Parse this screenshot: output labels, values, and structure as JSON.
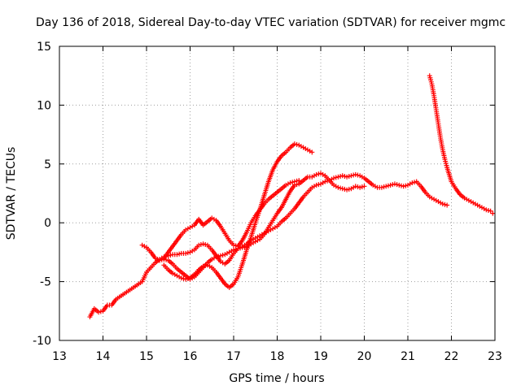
{
  "chart_data": {
    "type": "scatter",
    "title": "Day 136 of 2018, Sidereal Day-to-day VTEC variation (SDTVAR) for receiver mgmc",
    "xlabel": "GPS time / hours",
    "ylabel": "SDTVAR / TECUs",
    "xlim": [
      13,
      23
    ],
    "ylim": [
      -10,
      15
    ],
    "xticks": [
      "13",
      "14",
      "15",
      "16",
      "17",
      "18",
      "19",
      "20",
      "21",
      "22",
      "23"
    ],
    "yticks": [
      "-10",
      "-5",
      "0",
      "5",
      "10",
      "15"
    ],
    "grid": true,
    "marker": "plus",
    "color": "#ff0000",
    "series": [
      {
        "name": "track-1",
        "points": [
          [
            13.7,
            -8.0
          ],
          [
            13.8,
            -7.3
          ],
          [
            13.9,
            -7.6
          ],
          [
            14.0,
            -7.5
          ],
          [
            14.1,
            -7.0
          ],
          [
            14.2,
            -7.0
          ],
          [
            14.3,
            -6.5
          ],
          [
            14.5,
            -6.0
          ],
          [
            14.7,
            -5.5
          ],
          [
            14.9,
            -5.0
          ],
          [
            15.0,
            -4.2
          ],
          [
            15.1,
            -3.8
          ],
          [
            15.2,
            -3.4
          ],
          [
            15.3,
            -3.1
          ],
          [
            15.4,
            -2.9
          ],
          [
            15.5,
            -2.8
          ],
          [
            15.6,
            -2.7
          ],
          [
            15.7,
            -2.7
          ],
          [
            15.8,
            -2.6
          ],
          [
            15.9,
            -2.6
          ],
          [
            16.0,
            -2.5
          ],
          [
            16.1,
            -2.3
          ],
          [
            16.2,
            -1.9
          ],
          [
            16.3,
            -1.8
          ],
          [
            16.4,
            -1.9
          ],
          [
            16.5,
            -2.3
          ],
          [
            16.6,
            -2.8
          ],
          [
            16.7,
            -3.3
          ],
          [
            16.8,
            -3.5
          ],
          [
            16.9,
            -3.2
          ],
          [
            17.0,
            -2.6
          ],
          [
            17.1,
            -2.2
          ],
          [
            17.2,
            -2.0
          ],
          [
            17.3,
            -1.8
          ],
          [
            17.4,
            -1.5
          ],
          [
            17.5,
            -1.3
          ],
          [
            17.6,
            -1.1
          ],
          [
            17.7,
            -0.9
          ],
          [
            17.8,
            -0.7
          ],
          [
            17.9,
            -0.5
          ],
          [
            18.0,
            -0.3
          ],
          [
            18.1,
            0.1
          ],
          [
            18.2,
            0.4
          ],
          [
            18.3,
            0.8
          ],
          [
            18.4,
            1.2
          ],
          [
            18.5,
            1.7
          ],
          [
            18.6,
            2.2
          ],
          [
            18.7,
            2.6
          ],
          [
            18.8,
            3.0
          ],
          [
            18.9,
            3.2
          ],
          [
            19.0,
            3.3
          ],
          [
            19.1,
            3.5
          ],
          [
            19.2,
            3.6
          ],
          [
            19.3,
            3.8
          ],
          [
            19.4,
            3.9
          ],
          [
            19.5,
            4.0
          ],
          [
            19.6,
            3.9
          ],
          [
            19.7,
            4.0
          ],
          [
            19.8,
            4.1
          ],
          [
            19.9,
            4.0
          ],
          [
            20.0,
            3.8
          ],
          [
            20.1,
            3.5
          ],
          [
            20.2,
            3.2
          ],
          [
            20.3,
            3.0
          ],
          [
            20.4,
            3.0
          ],
          [
            20.5,
            3.1
          ],
          [
            20.6,
            3.2
          ],
          [
            20.7,
            3.3
          ],
          [
            20.8,
            3.2
          ],
          [
            20.9,
            3.1
          ],
          [
            21.0,
            3.2
          ],
          [
            21.1,
            3.4
          ],
          [
            21.2,
            3.5
          ],
          [
            21.3,
            3.1
          ],
          [
            21.4,
            2.6
          ],
          [
            21.5,
            2.2
          ],
          [
            21.6,
            2.0
          ],
          [
            21.7,
            1.8
          ],
          [
            21.8,
            1.6
          ],
          [
            21.9,
            1.5
          ]
        ]
      },
      {
        "name": "track-2",
        "points": [
          [
            14.9,
            -1.9
          ],
          [
            15.0,
            -2.1
          ],
          [
            15.1,
            -2.5
          ],
          [
            15.2,
            -3.0
          ],
          [
            15.3,
            -3.2
          ],
          [
            15.4,
            -3.1
          ],
          [
            15.5,
            -3.2
          ],
          [
            15.6,
            -3.5
          ],
          [
            15.7,
            -3.9
          ],
          [
            15.8,
            -4.2
          ],
          [
            15.9,
            -4.5
          ],
          [
            16.0,
            -4.8
          ],
          [
            16.1,
            -4.6
          ],
          [
            16.2,
            -4.2
          ],
          [
            16.3,
            -3.8
          ],
          [
            16.4,
            -3.4
          ],
          [
            16.5,
            -3.1
          ],
          [
            16.6,
            -2.9
          ],
          [
            16.7,
            -2.8
          ],
          [
            16.8,
            -2.7
          ],
          [
            16.9,
            -2.5
          ],
          [
            17.0,
            -2.3
          ],
          [
            17.1,
            -2.2
          ],
          [
            17.2,
            -2.1
          ],
          [
            17.3,
            -2.0
          ],
          [
            17.4,
            -1.8
          ],
          [
            17.5,
            -1.6
          ],
          [
            17.6,
            -1.4
          ],
          [
            17.7,
            -1.0
          ],
          [
            17.8,
            -0.4
          ],
          [
            17.9,
            0.2
          ],
          [
            18.0,
            0.8
          ],
          [
            18.1,
            1.3
          ],
          [
            18.2,
            2.0
          ],
          [
            18.3,
            2.7
          ],
          [
            18.4,
            3.2
          ],
          [
            18.5,
            3.3
          ],
          [
            18.6,
            3.6
          ],
          [
            18.7,
            3.9
          ],
          [
            18.8,
            3.9
          ],
          [
            18.9,
            4.1
          ],
          [
            19.0,
            4.2
          ],
          [
            19.1,
            4.0
          ],
          [
            19.2,
            3.6
          ],
          [
            19.3,
            3.2
          ],
          [
            19.4,
            3.0
          ],
          [
            19.5,
            2.9
          ],
          [
            19.6,
            2.8
          ],
          [
            19.7,
            2.9
          ],
          [
            19.8,
            3.1
          ],
          [
            19.9,
            3.0
          ],
          [
            20.0,
            3.1
          ]
        ]
      },
      {
        "name": "track-3",
        "points": [
          [
            15.4,
            -3.0
          ],
          [
            15.5,
            -2.5
          ],
          [
            15.6,
            -2.0
          ],
          [
            15.7,
            -1.5
          ],
          [
            15.8,
            -1.0
          ],
          [
            15.9,
            -0.6
          ],
          [
            16.0,
            -0.4
          ],
          [
            16.1,
            -0.2
          ],
          [
            16.2,
            0.3
          ],
          [
            16.3,
            -0.2
          ],
          [
            16.4,
            0.1
          ],
          [
            16.5,
            0.4
          ],
          [
            16.6,
            0.2
          ],
          [
            16.7,
            -0.3
          ],
          [
            16.8,
            -0.9
          ],
          [
            16.9,
            -1.5
          ],
          [
            17.0,
            -1.9
          ],
          [
            17.1,
            -2.0
          ],
          [
            17.2,
            -1.5
          ],
          [
            17.3,
            -0.8
          ],
          [
            17.4,
            0.0
          ],
          [
            17.5,
            0.6
          ],
          [
            17.6,
            1.1
          ],
          [
            17.7,
            1.6
          ],
          [
            17.8,
            2.0
          ],
          [
            17.9,
            2.3
          ],
          [
            18.0,
            2.6
          ],
          [
            18.1,
            2.9
          ],
          [
            18.2,
            3.2
          ],
          [
            18.3,
            3.4
          ],
          [
            18.4,
            3.5
          ],
          [
            18.5,
            3.6
          ]
        ]
      },
      {
        "name": "track-4",
        "points": [
          [
            15.4,
            -3.6
          ],
          [
            15.5,
            -4.0
          ],
          [
            15.6,
            -4.3
          ],
          [
            15.7,
            -4.5
          ],
          [
            15.8,
            -4.7
          ],
          [
            15.9,
            -4.8
          ],
          [
            16.0,
            -4.7
          ],
          [
            16.1,
            -4.4
          ],
          [
            16.2,
            -4.0
          ],
          [
            16.3,
            -3.7
          ],
          [
            16.4,
            -3.6
          ],
          [
            16.5,
            -3.8
          ],
          [
            16.6,
            -4.2
          ],
          [
            16.7,
            -4.7
          ],
          [
            16.8,
            -5.2
          ],
          [
            16.9,
            -5.5
          ],
          [
            17.0,
            -5.2
          ],
          [
            17.1,
            -4.6
          ],
          [
            17.2,
            -3.5
          ],
          [
            17.3,
            -2.3
          ],
          [
            17.4,
            -1.2
          ],
          [
            17.5,
            0.0
          ],
          [
            17.6,
            1.1
          ],
          [
            17.7,
            2.3
          ],
          [
            17.8,
            3.5
          ],
          [
            17.9,
            4.5
          ],
          [
            18.0,
            5.2
          ],
          [
            18.1,
            5.7
          ],
          [
            18.2,
            6.0
          ],
          [
            18.3,
            6.4
          ],
          [
            18.4,
            6.7
          ],
          [
            18.5,
            6.6
          ],
          [
            18.6,
            6.4
          ],
          [
            18.7,
            6.2
          ],
          [
            18.8,
            6.0
          ]
        ]
      },
      {
        "name": "track-5",
        "points": [
          [
            21.5,
            12.5
          ],
          [
            21.55,
            11.8
          ],
          [
            21.6,
            10.8
          ],
          [
            21.65,
            9.6
          ],
          [
            21.7,
            8.4
          ],
          [
            21.75,
            7.2
          ],
          [
            21.8,
            6.2
          ],
          [
            21.85,
            5.4
          ],
          [
            21.9,
            4.7
          ],
          [
            21.95,
            4.1
          ],
          [
            22.0,
            3.5
          ],
          [
            22.1,
            2.9
          ],
          [
            22.2,
            2.4
          ],
          [
            22.3,
            2.1
          ],
          [
            22.4,
            1.9
          ],
          [
            22.5,
            1.7
          ],
          [
            22.6,
            1.5
          ],
          [
            22.7,
            1.3
          ],
          [
            22.8,
            1.1
          ],
          [
            22.9,
            1.0
          ],
          [
            22.95,
            0.8
          ]
        ]
      }
    ]
  }
}
